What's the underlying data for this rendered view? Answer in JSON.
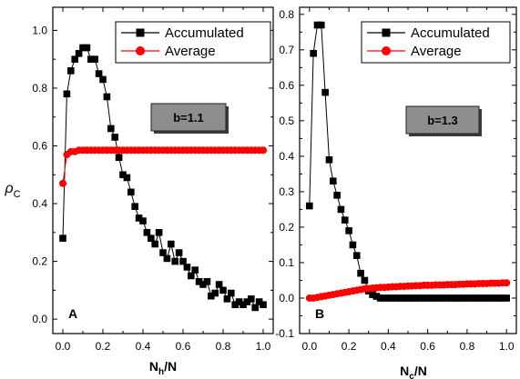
{
  "figure": {
    "ylabel_main": "ρ",
    "ylabel_sub": "C"
  },
  "chart_data": [
    {
      "type": "line",
      "panel_label": "A",
      "xlabel_main": "N",
      "xlabel_sub": "h",
      "xlabel_tail": "/N",
      "annotation": "b=1.1",
      "xlim": [
        -0.05,
        1.05
      ],
      "ylim": [
        -0.05,
        1.08
      ],
      "xticks": [
        0.0,
        0.2,
        0.4,
        0.6,
        0.8,
        1.0
      ],
      "yticks": [
        0.0,
        0.2,
        0.4,
        0.6,
        0.8,
        1.0
      ],
      "xtick_labels": [
        "0.0",
        "0.2",
        "0.4",
        "0.6",
        "0.8",
        "1.0"
      ],
      "ytick_labels": [
        "0.0",
        "0.2",
        "0.4",
        "0.6",
        "0.8",
        "1.0"
      ],
      "legend_position": "top-right",
      "series": [
        {
          "name": "Accumulated",
          "color": "#000000",
          "marker": "square",
          "x": [
            0.0,
            0.02,
            0.04,
            0.06,
            0.08,
            0.1,
            0.12,
            0.14,
            0.16,
            0.18,
            0.2,
            0.22,
            0.24,
            0.26,
            0.28,
            0.3,
            0.32,
            0.34,
            0.36,
            0.38,
            0.4,
            0.42,
            0.44,
            0.46,
            0.48,
            0.5,
            0.52,
            0.54,
            0.56,
            0.58,
            0.6,
            0.62,
            0.64,
            0.66,
            0.68,
            0.7,
            0.72,
            0.74,
            0.76,
            0.78,
            0.8,
            0.82,
            0.84,
            0.86,
            0.88,
            0.9,
            0.92,
            0.94,
            0.96,
            0.98,
            1.0
          ],
          "y": [
            0.28,
            0.78,
            0.86,
            0.9,
            0.92,
            0.94,
            0.94,
            0.9,
            0.9,
            0.85,
            0.83,
            0.77,
            0.66,
            0.63,
            0.56,
            0.5,
            0.49,
            0.44,
            0.39,
            0.35,
            0.34,
            0.3,
            0.28,
            0.26,
            0.3,
            0.23,
            0.21,
            0.26,
            0.2,
            0.23,
            0.2,
            0.18,
            0.15,
            0.17,
            0.13,
            0.12,
            0.13,
            0.08,
            0.09,
            0.12,
            0.1,
            0.07,
            0.09,
            0.05,
            0.06,
            0.05,
            0.06,
            0.07,
            0.04,
            0.06,
            0.05
          ]
        },
        {
          "name": "Average",
          "color": "#ff0000",
          "marker": "circle",
          "x": [
            0.0,
            0.02,
            0.04,
            0.06,
            0.08,
            0.1,
            0.12,
            0.14,
            0.16,
            0.18,
            0.2,
            0.22,
            0.24,
            0.26,
            0.28,
            0.3,
            0.32,
            0.34,
            0.36,
            0.38,
            0.4,
            0.42,
            0.44,
            0.46,
            0.48,
            0.5,
            0.52,
            0.54,
            0.56,
            0.58,
            0.6,
            0.62,
            0.64,
            0.66,
            0.68,
            0.7,
            0.72,
            0.74,
            0.76,
            0.78,
            0.8,
            0.82,
            0.84,
            0.86,
            0.88,
            0.9,
            0.92,
            0.94,
            0.96,
            0.98,
            1.0
          ],
          "y": [
            0.47,
            0.57,
            0.58,
            0.58,
            0.585,
            0.585,
            0.585,
            0.585,
            0.585,
            0.585,
            0.585,
            0.585,
            0.585,
            0.585,
            0.585,
            0.585,
            0.585,
            0.585,
            0.585,
            0.585,
            0.585,
            0.585,
            0.585,
            0.585,
            0.585,
            0.585,
            0.585,
            0.585,
            0.585,
            0.585,
            0.585,
            0.585,
            0.585,
            0.585,
            0.585,
            0.585,
            0.585,
            0.585,
            0.585,
            0.585,
            0.585,
            0.585,
            0.585,
            0.585,
            0.585,
            0.585,
            0.585,
            0.585,
            0.585,
            0.585,
            0.585
          ]
        }
      ]
    },
    {
      "type": "line",
      "panel_label": "B",
      "xlabel_main": "N",
      "xlabel_sub": "c",
      "xlabel_tail": "/N",
      "annotation": "b=1.3",
      "xlim": [
        -0.05,
        1.05
      ],
      "ylim": [
        -0.1,
        0.82
      ],
      "xticks": [
        0.0,
        0.2,
        0.4,
        0.6,
        0.8,
        1.0
      ],
      "yticks": [
        -0.1,
        0.0,
        0.1,
        0.2,
        0.3,
        0.4,
        0.5,
        0.6,
        0.7,
        0.8
      ],
      "xtick_labels": [
        "0.0",
        "0.2",
        "0.4",
        "0.6",
        "0.8",
        "1.0"
      ],
      "ytick_labels": [
        "-0.1",
        "0.0",
        "0.1",
        "0.2",
        "0.3",
        "0.4",
        "0.5",
        "0.6",
        "0.7",
        "0.8"
      ],
      "legend_position": "top-right",
      "series": [
        {
          "name": "Accumulated",
          "color": "#000000",
          "marker": "square",
          "x": [
            0.0,
            0.02,
            0.04,
            0.06,
            0.08,
            0.1,
            0.12,
            0.14,
            0.16,
            0.18,
            0.2,
            0.22,
            0.24,
            0.26,
            0.28,
            0.3,
            0.32,
            0.34,
            0.36,
            0.38,
            0.4,
            0.42,
            0.44,
            0.46,
            0.48,
            0.5,
            0.52,
            0.54,
            0.56,
            0.58,
            0.6,
            0.62,
            0.64,
            0.66,
            0.68,
            0.7,
            0.72,
            0.74,
            0.76,
            0.78,
            0.8,
            0.82,
            0.84,
            0.86,
            0.88,
            0.9,
            0.92,
            0.94,
            0.96,
            0.98,
            1.0
          ],
          "y": [
            0.26,
            0.69,
            0.77,
            0.77,
            0.58,
            0.39,
            0.33,
            0.29,
            0.25,
            0.22,
            0.19,
            0.15,
            0.12,
            0.07,
            0.05,
            0.02,
            0.01,
            0.005,
            0.0,
            0.0,
            0.0,
            0.0,
            0.0,
            0.0,
            0.0,
            0.0,
            0.0,
            0.0,
            0.0,
            0.0,
            0.0,
            0.0,
            0.0,
            0.0,
            0.0,
            0.0,
            0.0,
            0.0,
            0.0,
            0.0,
            0.0,
            0.0,
            0.0,
            0.0,
            0.0,
            0.0,
            0.0,
            0.0,
            0.0,
            0.0,
            0.0
          ]
        },
        {
          "name": "Average",
          "color": "#ff0000",
          "marker": "circle",
          "x": [
            0.0,
            0.02,
            0.04,
            0.06,
            0.08,
            0.1,
            0.12,
            0.14,
            0.16,
            0.18,
            0.2,
            0.22,
            0.24,
            0.26,
            0.28,
            0.3,
            0.32,
            0.34,
            0.36,
            0.38,
            0.4,
            0.42,
            0.44,
            0.46,
            0.48,
            0.5,
            0.52,
            0.54,
            0.56,
            0.58,
            0.6,
            0.62,
            0.64,
            0.66,
            0.68,
            0.7,
            0.72,
            0.74,
            0.76,
            0.78,
            0.8,
            0.82,
            0.84,
            0.86,
            0.88,
            0.9,
            0.92,
            0.94,
            0.96,
            0.98,
            1.0
          ],
          "y": [
            0.0,
            0.0,
            0.002,
            0.004,
            0.006,
            0.008,
            0.01,
            0.012,
            0.014,
            0.016,
            0.018,
            0.02,
            0.022,
            0.024,
            0.026,
            0.027,
            0.028,
            0.029,
            0.03,
            0.03,
            0.031,
            0.032,
            0.032,
            0.033,
            0.033,
            0.034,
            0.034,
            0.035,
            0.035,
            0.036,
            0.036,
            0.036,
            0.037,
            0.037,
            0.037,
            0.038,
            0.038,
            0.038,
            0.039,
            0.039,
            0.04,
            0.04,
            0.04,
            0.041,
            0.041,
            0.041,
            0.042,
            0.042,
            0.042,
            0.043,
            0.043
          ]
        }
      ]
    }
  ]
}
